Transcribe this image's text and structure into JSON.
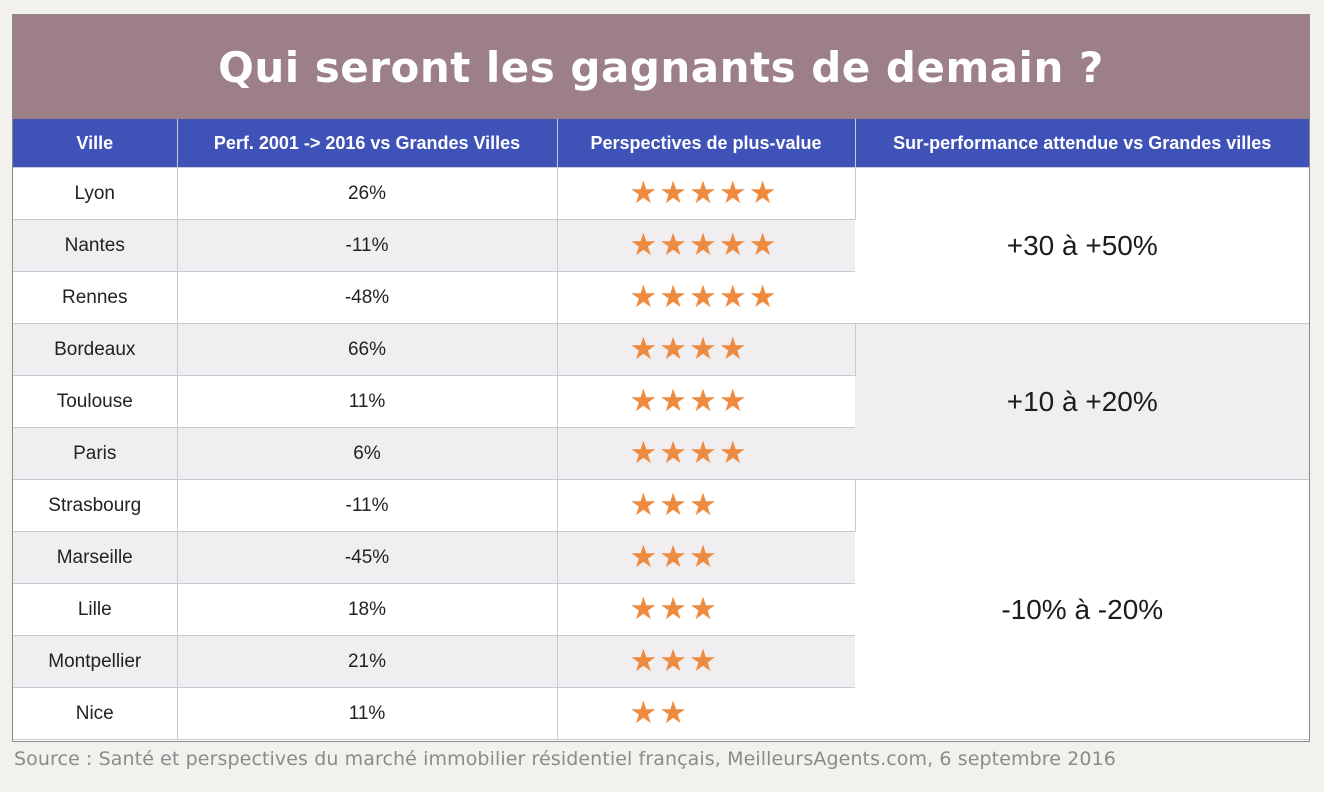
{
  "title": "Qui seront les gagnants de demain ?",
  "headers": [
    "Ville",
    "Perf. 2001 -> 2016 vs Grandes Villes",
    "Perspectives de plus-value",
    "Sur-performance attendue vs Grandes villes"
  ],
  "rows": [
    {
      "ville": "Lyon",
      "perf": "26%",
      "stars": 5
    },
    {
      "ville": "Nantes",
      "perf": "-11%",
      "stars": 5
    },
    {
      "ville": "Rennes",
      "perf": "-48%",
      "stars": 5
    },
    {
      "ville": "Bordeaux",
      "perf": "66%",
      "stars": 4
    },
    {
      "ville": "Toulouse",
      "perf": "11%",
      "stars": 4
    },
    {
      "ville": "Paris",
      "perf": "6%",
      "stars": 4
    },
    {
      "ville": "Strasbourg",
      "perf": "-11%",
      "stars": 3
    },
    {
      "ville": "Marseille",
      "perf": "-45%",
      "stars": 3
    },
    {
      "ville": "Lille",
      "perf": "18%",
      "stars": 3
    },
    {
      "ville": "Montpellier",
      "perf": "21%",
      "stars": 3
    },
    {
      "ville": "Nice",
      "perf": "11%",
      "stars": 2
    }
  ],
  "groups": [
    {
      "label": "+30 à +50%"
    },
    {
      "label": "+10 à +20%"
    },
    {
      "label": "-10% à -20%"
    }
  ],
  "star_icon": "star-icon",
  "colors": {
    "header_bg": "#3f52b8",
    "title_bg": "#9c7f87",
    "star": "#f08a3e",
    "alt_row": "#f1eef1"
  },
  "source": "Source : Santé et perspectives du marché immobilier résidentiel français, MeilleursAgents.com, 6 septembre 2016"
}
